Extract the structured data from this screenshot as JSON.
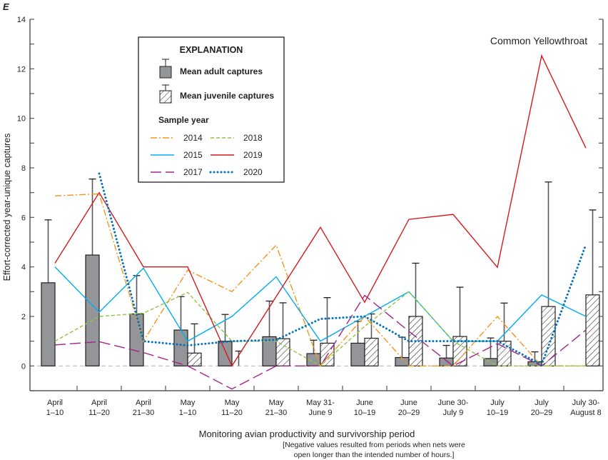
{
  "chart_data": {
    "type": "bar",
    "panel_letter": "E",
    "title": "Common Yellowthroat",
    "ylabel": "Effort-corrected year-unique captures",
    "xlabel": "Monitoring avian productivity and survivorship period",
    "xnote": [
      "[Negative values resulted from periods when nets were",
      "open longer than the intended number of hours.]"
    ],
    "ylim": [
      -1,
      14
    ],
    "yticks": [
      0,
      2,
      4,
      6,
      8,
      10,
      12,
      14
    ],
    "categories": [
      [
        "April",
        "1–10"
      ],
      [
        "April",
        "11–20"
      ],
      [
        "April",
        "21–30"
      ],
      [
        "May",
        "1–10"
      ],
      [
        "May",
        "11–20"
      ],
      [
        "May",
        "21–30"
      ],
      [
        "May 31-",
        "June 9"
      ],
      [
        "June",
        "10–19"
      ],
      [
        "June",
        "20–29"
      ],
      [
        "June 30-",
        "July 9"
      ],
      [
        "July",
        "10–19"
      ],
      [
        "July",
        "20–29"
      ],
      [
        "July 30-",
        "August 8"
      ]
    ],
    "bars": {
      "adult_mean": [
        3.36,
        4.48,
        2.1,
        1.45,
        1.0,
        1.18,
        0.5,
        0.92,
        0.34,
        0.32,
        0.3,
        0.17,
        null
      ],
      "adult_error_top": [
        5.9,
        7.55,
        3.65,
        2.8,
        2.08,
        2.62,
        1.04,
        1.8,
        1.16,
        0.83,
        1.13,
        0.57,
        null
      ],
      "juvenile_mean": [
        null,
        null,
        null,
        0.52,
        0.0,
        1.1,
        0.92,
        1.12,
        2.0,
        1.19,
        1.0,
        2.4,
        2.87
      ],
      "juvenile_error_top": [
        null,
        null,
        null,
        1.7,
        0.6,
        2.55,
        2.76,
        2.1,
        4.15,
        3.18,
        2.54,
        7.43,
        6.3
      ]
    },
    "series": [
      {
        "name": "2014",
        "color": "#f7941d",
        "dash": "9,3,2,3",
        "values": [
          6.87,
          6.95,
          1.0,
          3.87,
          3.0,
          4.88,
          0,
          2.0,
          0,
          0,
          2.0,
          0,
          0
        ]
      },
      {
        "name": "2015",
        "color": "#00aeef",
        "dash": "",
        "values": [
          4.0,
          2.17,
          3.95,
          1.0,
          2.0,
          3.6,
          1.0,
          2.0,
          3.0,
          1.0,
          1.0,
          2.87,
          2.0
        ]
      },
      {
        "name": "2017",
        "color": "#a3238e",
        "dash": "15,6",
        "values": [
          0.85,
          0.98,
          0.54,
          0,
          -0.93,
          0,
          0,
          2.85,
          1.4,
          0,
          0.9,
          0,
          1.45
        ]
      },
      {
        "name": "2018",
        "color": "#8dc63f",
        "dash": "5,3",
        "values": [
          1.0,
          2.0,
          2.13,
          2.97,
          1.0,
          1.0,
          0,
          1.6,
          3.0,
          1.0,
          0,
          0,
          0
        ]
      },
      {
        "name": "2019",
        "color": "#d7191c",
        "dash": "",
        "values": [
          4.15,
          7.0,
          4.0,
          4.0,
          0,
          2.8,
          5.6,
          2.57,
          5.92,
          6.12,
          3.98,
          12.53,
          8.8
        ]
      },
      {
        "name": "2020",
        "color": "#0072bc",
        "dash": "0,5",
        "values": [
          null,
          7.77,
          1.0,
          0.83,
          1.0,
          1.05,
          1.9,
          2.0,
          1.0,
          1.0,
          1.0,
          0.05,
          4.9
        ]
      }
    ],
    "legend": {
      "placement": "top-left",
      "heading": "EXPLANATION",
      "adult_label": "Mean adult captures",
      "juvenile_label": "Mean juvenile captures",
      "year_heading": "Sample year"
    }
  }
}
